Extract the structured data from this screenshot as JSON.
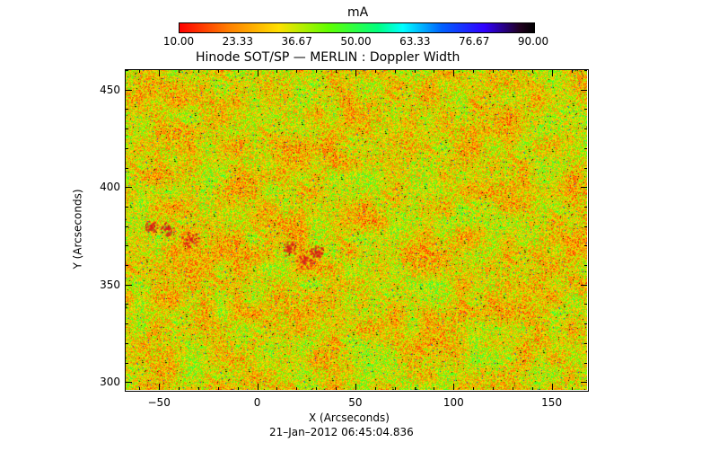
{
  "colorbar": {
    "unit_label": "mA",
    "tick_labels": [
      "10.00",
      "23.33",
      "36.67",
      "50.00",
      "63.33",
      "76.67",
      "90.00"
    ],
    "range": [
      10,
      90
    ],
    "colormap": [
      "#ff0000",
      "#ff8000",
      "#ffe000",
      "#60ff00",
      "#00ff80",
      "#00ffff",
      "#0060ff",
      "#3000ff",
      "#000000"
    ]
  },
  "chart_data": {
    "type": "heatmap",
    "title": "Hinode SOT/SP — MERLIN : Doppler Width",
    "xlabel": "X (Arcseconds)",
    "ylabel": "Y (Arcseconds)",
    "xlim": [
      -67,
      168
    ],
    "ylim": [
      296,
      460
    ],
    "x_ticks": [
      "−50",
      "0",
      "50",
      "100",
      "150"
    ],
    "x_tick_values": [
      -50,
      0,
      50,
      100,
      150
    ],
    "y_ticks": [
      "300",
      "350",
      "400",
      "450"
    ],
    "y_tick_values": [
      300,
      350,
      400,
      450
    ],
    "value_range": [
      10,
      90
    ],
    "timestamp": "21–Jan–2012 06:45:04.836"
  }
}
